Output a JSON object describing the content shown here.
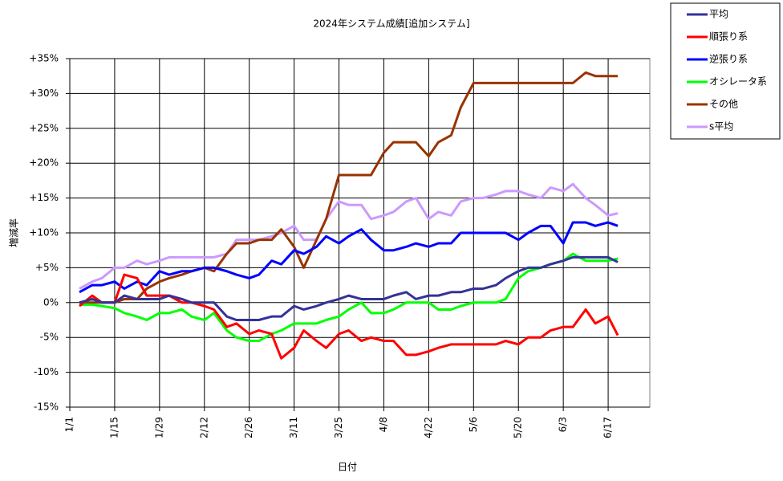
{
  "chart_data": {
    "type": "line",
    "title": "2024年システム成績[追加システム]",
    "x_label": "日付",
    "y_label": "増減率",
    "x": [
      3,
      7,
      10,
      14,
      17,
      21,
      24,
      28,
      31,
      35,
      38,
      42,
      45,
      49,
      52,
      56,
      59,
      63,
      66,
      70,
      73,
      77,
      80,
      84,
      87,
      91,
      94,
      98,
      101,
      105,
      108,
      112,
      115,
      119,
      122,
      126,
      129,
      133,
      136,
      140,
      143,
      147,
      150,
      154,
      157,
      161,
      164,
      168,
      171
    ],
    "xlim": [
      0,
      181
    ],
    "xticks": [
      {
        "value": 0,
        "label": "1/1"
      },
      {
        "value": 14,
        "label": "1/15"
      },
      {
        "value": 28,
        "label": "1/29"
      },
      {
        "value": 42,
        "label": "2/12"
      },
      {
        "value": 56,
        "label": "2/26"
      },
      {
        "value": 70,
        "label": "3/11"
      },
      {
        "value": 84,
        "label": "3/25"
      },
      {
        "value": 98,
        "label": "4/8"
      },
      {
        "value": 112,
        "label": "4/22"
      },
      {
        "value": 126,
        "label": "5/6"
      },
      {
        "value": 140,
        "label": "5/20"
      },
      {
        "value": 154,
        "label": "6/3"
      },
      {
        "value": 168,
        "label": "6/17"
      }
    ],
    "ylim": [
      -15,
      35
    ],
    "yticks": [
      {
        "value": -15,
        "label": "-15%"
      },
      {
        "value": -10,
        "label": "-10%"
      },
      {
        "value": -5,
        "label": "-5%"
      },
      {
        "value": 0,
        "label": "0%"
      },
      {
        "value": 5,
        "label": "+5%"
      },
      {
        "value": 10,
        "label": "+10%"
      },
      {
        "value": 15,
        "label": "+15%"
      },
      {
        "value": 20,
        "label": "+20%"
      },
      {
        "value": 25,
        "label": "+25%"
      },
      {
        "value": 30,
        "label": "+30%"
      },
      {
        "value": 35,
        "label": "+35%"
      }
    ],
    "grid": true,
    "legend": "outside-top-right",
    "series": [
      {
        "name": "平均",
        "color": "#333399",
        "values": [
          0,
          0.5,
          0,
          0,
          1,
          0.5,
          0.5,
          0.5,
          1,
          0.5,
          0,
          0,
          0,
          -2,
          -2.5,
          -2.5,
          -2.5,
          -2,
          -2,
          -0.5,
          -1,
          -0.5,
          0,
          0.5,
          1,
          0.5,
          0.5,
          0.5,
          1,
          1.5,
          0.5,
          1,
          1,
          1.5,
          1.5,
          2,
          2,
          2.5,
          3.5,
          4.5,
          5,
          5,
          5.5,
          6,
          6.5,
          6.5,
          6.5,
          6.5,
          5.8
        ]
      },
      {
        "name": "順張り系",
        "color": "#ff0000",
        "values": [
          -0.5,
          1,
          0,
          0,
          4,
          3.5,
          1,
          1,
          1,
          0,
          0,
          -0.5,
          -1,
          -3.5,
          -3,
          -4.5,
          -4,
          -4.5,
          -8,
          -6.5,
          -4,
          -5.5,
          -6.5,
          -4.5,
          -4,
          -5.5,
          -5,
          -5.5,
          -5.5,
          -7.5,
          -7.5,
          -7,
          -6.5,
          -6,
          -6,
          -6,
          -6,
          -6,
          -5.5,
          -6,
          -5,
          -5,
          -4,
          -3.5,
          -3.5,
          -1,
          -3,
          -2,
          -4.7
        ]
      },
      {
        "name": "逆張り系",
        "color": "#0000ff",
        "values": [
          1.5,
          2.5,
          2.5,
          3,
          2,
          3,
          2.5,
          4.5,
          4,
          4.5,
          4.5,
          5,
          5,
          4.5,
          4,
          3.5,
          4,
          6,
          5.5,
          7.5,
          7,
          8,
          9.5,
          8.5,
          9.5,
          10.5,
          9,
          7.5,
          7.5,
          8,
          8.5,
          8,
          8.5,
          8.5,
          10,
          10,
          10,
          10,
          10,
          9,
          10,
          11,
          11,
          8.5,
          11.5,
          11.5,
          11,
          11.5,
          11
        ]
      },
      {
        "name": "オシレータ系",
        "color": "#00ff00",
        "values": [
          -0.3,
          -0.3,
          -0.5,
          -0.8,
          -1.5,
          -2,
          -2.5,
          -1.5,
          -1.5,
          -1,
          -2,
          -2.5,
          -1.5,
          -4,
          -5,
          -5.5,
          -5.5,
          -4.5,
          -4,
          -3,
          -3,
          -3,
          -2.5,
          -2,
          -1,
          0,
          -1.5,
          -1.5,
          -1,
          0,
          0,
          0,
          -1,
          -1,
          -0.5,
          0,
          0,
          0,
          0.5,
          3.5,
          4.5,
          5,
          5.5,
          6,
          7,
          6,
          6,
          6,
          6.3
        ]
      },
      {
        "name": "その他",
        "color": "#993300",
        "values": [
          0,
          0,
          0,
          0,
          0.5,
          0.5,
          2,
          3,
          3.5,
          4,
          4.5,
          5,
          4.5,
          7,
          8.5,
          8.5,
          9,
          9,
          10.5,
          8,
          5,
          9,
          12,
          18.3,
          18.3,
          18.3,
          18.3,
          21.5,
          23,
          23,
          23,
          21,
          23,
          24,
          28,
          31.5,
          31.5,
          31.5,
          31.5,
          31.5,
          31.5,
          31.5,
          31.5,
          31.5,
          31.5,
          33,
          32.5,
          32.5,
          32.5
        ]
      },
      {
        "name": "s平均",
        "color": "#cc99ff",
        "values": [
          2,
          3,
          3.5,
          5,
          5,
          6,
          5.5,
          6,
          6.5,
          6.5,
          6.5,
          6.5,
          6.5,
          7,
          9,
          9,
          9,
          9.5,
          10,
          11,
          9,
          9,
          12,
          14.5,
          14,
          14,
          12,
          12.5,
          13,
          14.5,
          15,
          12,
          13,
          12.5,
          14.5,
          15,
          15,
          15.5,
          16,
          16,
          15.5,
          15,
          16.5,
          16,
          17,
          15,
          14,
          12.5,
          12.8
        ]
      }
    ]
  }
}
